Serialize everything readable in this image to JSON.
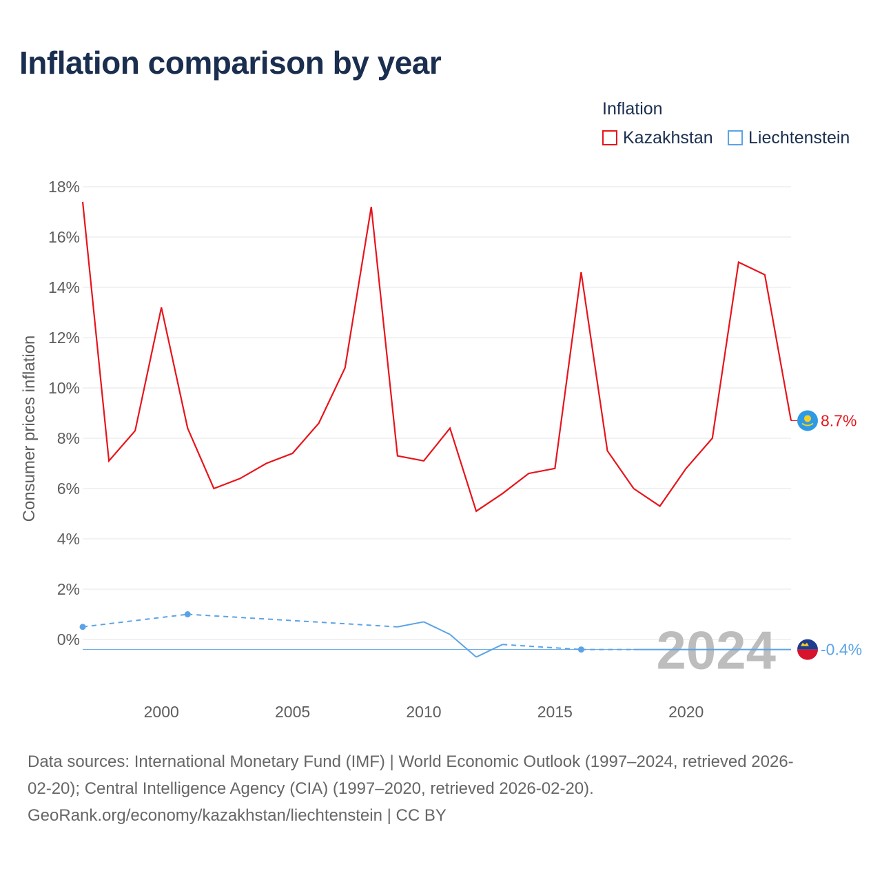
{
  "title": "Inflation comparison by year",
  "legend": {
    "title": "Inflation",
    "items": [
      {
        "label": "Kazakhstan",
        "color": "#e8141b"
      },
      {
        "label": "Liechtenstein",
        "color": "#5ba3e6"
      }
    ]
  },
  "footer": {
    "line1": "Data sources: International Monetary Fund (IMF) | World Economic Outlook (1997–2024, retrieved 2026-",
    "line2": "02-20); Central Intelligence Agency (CIA) (1997–2020, retrieved 2026-02-20).",
    "line3": "GeoRank.org/economy/kazakhstan/liechtenstein | CC BY"
  },
  "chart_data": {
    "type": "line",
    "title": "Inflation comparison by year",
    "ylabel": "Consumer prices inflation",
    "xlabel": "",
    "xlim": [
      1997,
      2024
    ],
    "ylim": [
      -2,
      18
    ],
    "x_ticks": [
      2000,
      2005,
      2010,
      2015,
      2020
    ],
    "y_ticks": [
      0,
      2,
      4,
      6,
      8,
      10,
      12,
      14,
      16,
      18
    ],
    "y_tick_labels": [
      "0%",
      "2%",
      "4%",
      "6%",
      "8%",
      "10%",
      "12%",
      "14%",
      "16%",
      "18%"
    ],
    "x_tick_labels": [
      "2000",
      "2005",
      "2010",
      "2015",
      "2020"
    ],
    "year_watermark": "2024",
    "series": [
      {
        "name": "Kazakhstan",
        "color": "#e8141b",
        "end_label": "8.7%",
        "points": [
          [
            1997,
            17.4
          ],
          [
            1998,
            7.1
          ],
          [
            1999,
            8.3
          ],
          [
            2000,
            13.2
          ],
          [
            2001,
            8.4
          ],
          [
            2002,
            6.0
          ],
          [
            2003,
            6.4
          ],
          [
            2004,
            7.0
          ],
          [
            2005,
            7.4
          ],
          [
            2006,
            8.6
          ],
          [
            2007,
            10.8
          ],
          [
            2008,
            17.2
          ],
          [
            2009,
            7.3
          ],
          [
            2010,
            7.1
          ],
          [
            2011,
            8.4
          ],
          [
            2012,
            5.1
          ],
          [
            2013,
            5.8
          ],
          [
            2014,
            6.6
          ],
          [
            2015,
            6.8
          ],
          [
            2016,
            14.6
          ],
          [
            2017,
            7.5
          ],
          [
            2018,
            6.0
          ],
          [
            2019,
            5.3
          ],
          [
            2020,
            6.8
          ],
          [
            2021,
            8.0
          ],
          [
            2022,
            15.0
          ],
          [
            2023,
            14.5
          ],
          [
            2024,
            8.7
          ]
        ]
      },
      {
        "name": "Liechtenstein",
        "color": "#5ba3e6",
        "end_label": "-0.4%",
        "points": [
          [
            1997,
            0.5
          ],
          [
            2001,
            1.0
          ],
          [
            2009,
            0.5
          ],
          [
            2010,
            0.7
          ],
          [
            2011,
            0.2
          ],
          [
            2012,
            -0.7
          ],
          [
            2013,
            -0.2
          ],
          [
            2016,
            -0.4
          ],
          [
            2018,
            -0.4
          ],
          [
            2024,
            -0.4
          ]
        ],
        "dashed_segments": [
          [
            1997,
            2009
          ],
          [
            2013,
            2018
          ]
        ],
        "marker_points": [
          1997,
          2001,
          2016
        ]
      }
    ]
  }
}
